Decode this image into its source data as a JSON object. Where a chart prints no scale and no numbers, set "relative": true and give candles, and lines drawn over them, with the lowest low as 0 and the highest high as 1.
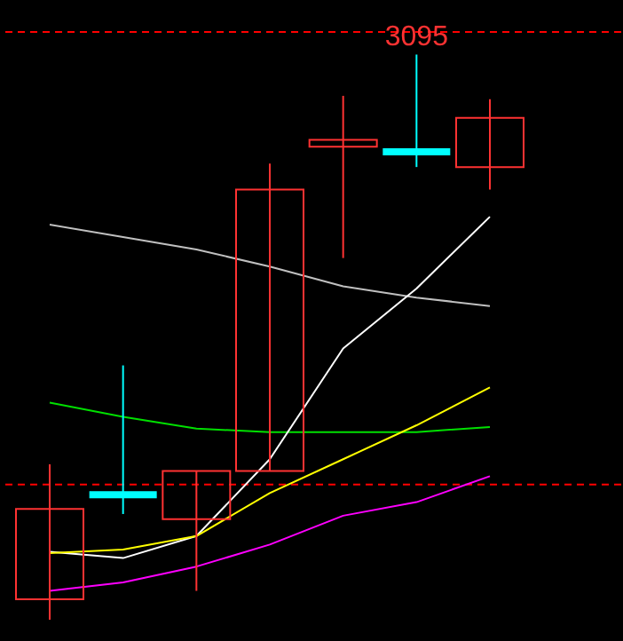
{
  "chart_data": {
    "type": "candlestick",
    "relative": true,
    "categories": [
      null,
      null,
      null,
      null,
      null,
      null,
      null
    ],
    "ohlc": [
      [
        0.036,
        0.275,
        0,
        0.196
      ],
      [
        0.221,
        0.45,
        0.187,
        0.221
      ],
      [
        0.178,
        0.263,
        0.051,
        0.263
      ],
      [
        0.263,
        0.807,
        0.263,
        0.761
      ],
      [
        0.837,
        0.927,
        0.64,
        0.849
      ],
      [
        0.828,
        1,
        0.801,
        0.828
      ],
      [
        0.801,
        0.921,
        0.761,
        0.888
      ]
    ],
    "colors": [
      "#ff3232",
      "#00ffff",
      "#ff3232",
      "#ff3232",
      "#ff3232",
      "#00ffff",
      "#ff3232"
    ],
    "series": [
      {
        "type": "line",
        "color": "#c0c0c0",
        "values": [
          0.699,
          0.677,
          0.655,
          0.625,
          0.59,
          0.57,
          0.555
        ]
      },
      {
        "type": "line",
        "color": "#00e000",
        "values": [
          0.384,
          0.359,
          0.338,
          0.332,
          0.332,
          0.332,
          0.341
        ]
      },
      {
        "type": "line",
        "color": "#ffffff",
        "values": [
          0.12,
          0.109,
          0.148,
          0.284,
          0.48,
          0.586,
          0.713
        ]
      },
      {
        "type": "line",
        "color": "#ffff00",
        "values": [
          0.118,
          0.124,
          0.148,
          0.224,
          0.284,
          0.344,
          0.411
        ]
      },
      {
        "type": "line",
        "color": "#ff00ff",
        "values": [
          0.051,
          0.066,
          0.094,
          0.133,
          0.184,
          0.208,
          0.254
        ]
      }
    ],
    "ref_lines": [
      {
        "axis": "y",
        "value": 1.04,
        "color": "#ff0000",
        "line_style": "dashed"
      },
      {
        "axis": "y",
        "value": 0.239,
        "color": "#ff0000",
        "line_style": "dashed"
      }
    ],
    "annotations": [
      {
        "text": "3095",
        "y": 1
      }
    ],
    "tick_labels": false
  }
}
